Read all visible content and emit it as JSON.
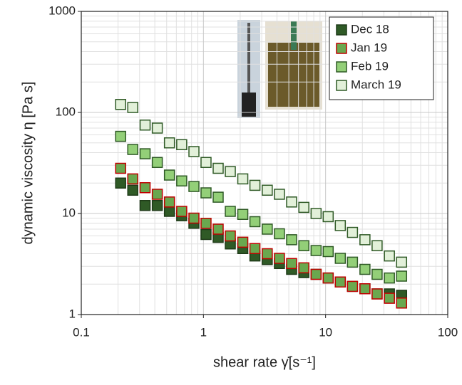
{
  "chart_data": {
    "type": "scatter",
    "x_label": "shear rate γ̇[s⁻¹]",
    "y_label": "dynamic viscosity η [Pa s]",
    "log_x": true,
    "log_y": true,
    "grid": true,
    "minor_grid": true,
    "legend": "top-right",
    "xlim": [
      0.1,
      100
    ],
    "xticks": [
      0.1,
      1,
      10,
      100
    ],
    "ylim": [
      1,
      1000
    ],
    "yticks": [
      1,
      10,
      100,
      1000
    ],
    "x": [
      0.21,
      0.264,
      0.333,
      0.419,
      0.527,
      0.664,
      0.836,
      1.05,
      1.32,
      1.66,
      2.1,
      2.64,
      3.33,
      4.19,
      5.27,
      6.64,
      8.36,
      10.5,
      13.2,
      16.6,
      21,
      26.4,
      33.3,
      41.9
    ],
    "series": [
      {
        "name": "Dec 18",
        "color": "#2f5a26",
        "edge": "#1e3a18",
        "values": [
          20,
          17,
          12,
          12,
          10.5,
          9.5,
          8,
          6.2,
          5.8,
          5,
          4.5,
          3.8,
          3.5,
          3.2,
          2.8,
          2.6,
          2.5,
          2.3,
          2.1,
          1.9,
          1.8,
          1.6,
          1.6,
          1.55
        ]
      },
      {
        "name": "Jan 19",
        "color": "#6aa84f",
        "edge": "#c00000",
        "values": [
          28,
          22,
          18,
          15.5,
          13,
          10.5,
          9,
          8,
          7,
          6,
          5.2,
          4.5,
          4,
          3.6,
          3.2,
          2.9,
          2.5,
          2.3,
          2.1,
          1.9,
          1.8,
          1.6,
          1.45,
          1.3
        ]
      },
      {
        "name": "Feb 19",
        "color": "#93cf78",
        "edge": "#2f5a26",
        "values": [
          58,
          43,
          39,
          32,
          24,
          21,
          18.5,
          16,
          14.5,
          10.5,
          9.8,
          8.3,
          7,
          6.3,
          5.5,
          4.8,
          4.3,
          4.2,
          3.6,
          3.3,
          2.8,
          2.5,
          2.3,
          2.4
        ]
      },
      {
        "name": "March 19",
        "color": "#e2f0d9",
        "edge": "#2f5a26",
        "values": [
          120,
          112,
          75,
          70,
          50,
          48,
          41,
          32,
          28,
          26,
          22,
          19,
          17,
          15.5,
          13,
          11.5,
          10,
          9.3,
          7.6,
          6.5,
          5.5,
          4.8,
          3.8,
          3.3
        ]
      }
    ]
  }
}
